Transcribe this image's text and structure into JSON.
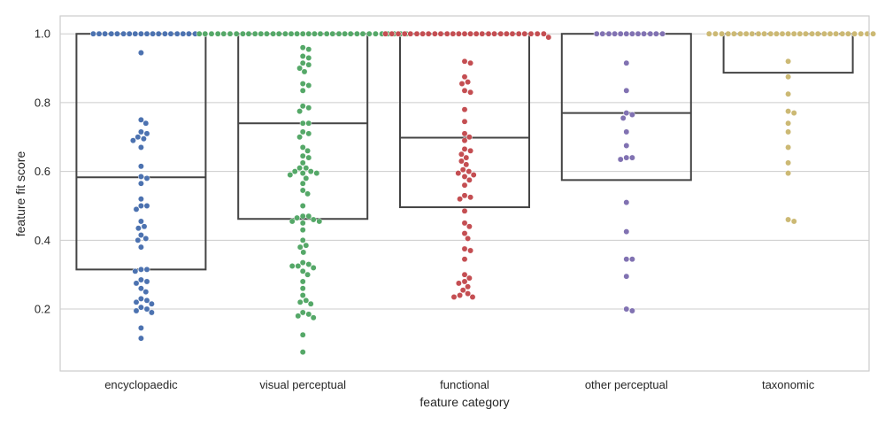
{
  "chart_data": {
    "type": "box+swarm",
    "xlabel": "feature category",
    "ylabel": "feature fit score",
    "ylim": [
      0.02,
      1.052
    ],
    "yticks": [
      "0.2",
      "0.4",
      "0.6",
      "0.8",
      "1.0"
    ],
    "grid": "horizontal",
    "categories": [
      "encyclopaedic",
      "visual perceptual",
      "functional",
      "other perceptual",
      "taxonomic"
    ],
    "colors": [
      "#4c72b0",
      "#55a868",
      "#c44e52",
      "#8172b2",
      "#ccb974"
    ],
    "boxes": [
      {
        "category": "encyclopaedic",
        "q1": 0.315,
        "median": 0.583,
        "q3": 1.0
      },
      {
        "category": "visual perceptual",
        "q1": 0.462,
        "median": 0.74,
        "q3": 1.0
      },
      {
        "category": "functional",
        "q1": 0.496,
        "median": 0.698,
        "q3": 1.0
      },
      {
        "category": "other perceptual",
        "q1": 0.575,
        "median": 0.77,
        "q3": 1.0
      },
      {
        "category": "taxonomic",
        "q1": 0.887,
        "median": 1.0,
        "q3": 1.0
      }
    ],
    "series": [
      {
        "category": "encyclopaedic",
        "values": [
          1,
          1,
          1,
          1,
          1,
          1,
          1,
          1,
          1,
          1,
          1,
          1,
          1,
          1,
          1,
          1,
          1,
          1,
          0.945,
          0.75,
          0.74,
          0.715,
          0.71,
          0.7,
          0.695,
          0.69,
          0.67,
          0.615,
          0.585,
          0.58,
          0.565,
          0.52,
          0.5,
          0.5,
          0.49,
          0.455,
          0.44,
          0.435,
          0.415,
          0.405,
          0.4,
          0.38,
          0.315,
          0.315,
          0.31,
          0.285,
          0.28,
          0.275,
          0.26,
          0.25,
          0.23,
          0.225,
          0.22,
          0.215,
          0.205,
          0.2,
          0.195,
          0.19,
          0.145,
          0.115
        ]
      },
      {
        "category": "visual perceptual",
        "values": [
          1,
          1,
          1,
          1,
          1,
          1,
          1,
          1,
          1,
          1,
          1,
          1,
          1,
          1,
          1,
          1,
          1,
          1,
          1,
          1,
          1,
          1,
          1,
          1,
          1,
          1,
          1,
          1,
          1,
          1,
          1,
          1,
          1,
          1,
          1,
          1,
          1,
          0.96,
          0.955,
          0.935,
          0.93,
          0.915,
          0.91,
          0.9,
          0.89,
          0.855,
          0.85,
          0.835,
          0.79,
          0.785,
          0.775,
          0.74,
          0.74,
          0.715,
          0.71,
          0.7,
          0.67,
          0.66,
          0.645,
          0.64,
          0.625,
          0.61,
          0.61,
          0.6,
          0.6,
          0.595,
          0.595,
          0.59,
          0.58,
          0.565,
          0.545,
          0.535,
          0.5,
          0.47,
          0.47,
          0.465,
          0.46,
          0.455,
          0.455,
          0.45,
          0.43,
          0.4,
          0.385,
          0.38,
          0.365,
          0.335,
          0.33,
          0.325,
          0.325,
          0.32,
          0.31,
          0.3,
          0.28,
          0.26,
          0.24,
          0.225,
          0.22,
          0.215,
          0.19,
          0.185,
          0.18,
          0.175,
          0.125,
          0.075
        ]
      },
      {
        "category": "functional",
        "values": [
          1,
          1,
          1,
          1,
          1,
          1,
          1,
          1,
          1,
          1,
          1,
          1,
          1,
          1,
          1,
          1,
          1,
          1,
          1,
          1,
          1,
          1,
          1,
          1,
          1,
          1,
          1,
          0.99,
          0.92,
          0.915,
          0.875,
          0.86,
          0.855,
          0.835,
          0.83,
          0.78,
          0.745,
          0.71,
          0.7,
          0.69,
          0.665,
          0.66,
          0.65,
          0.64,
          0.63,
          0.62,
          0.605,
          0.6,
          0.595,
          0.59,
          0.585,
          0.575,
          0.56,
          0.53,
          0.525,
          0.52,
          0.485,
          0.45,
          0.44,
          0.42,
          0.405,
          0.375,
          0.37,
          0.345,
          0.3,
          0.29,
          0.28,
          0.275,
          0.265,
          0.255,
          0.245,
          0.24,
          0.235,
          0.235
        ]
      },
      {
        "category": "other perceptual",
        "values": [
          1,
          1,
          1,
          1,
          1,
          1,
          1,
          1,
          1,
          1,
          1,
          1,
          0.915,
          0.835,
          0.77,
          0.765,
          0.755,
          0.715,
          0.675,
          0.64,
          0.64,
          0.635,
          0.51,
          0.425,
          0.345,
          0.345,
          0.295,
          0.2,
          0.195
        ]
      },
      {
        "category": "taxonomic",
        "values": [
          1,
          1,
          1,
          1,
          1,
          1,
          1,
          1,
          1,
          1,
          1,
          1,
          1,
          1,
          1,
          1,
          1,
          1,
          1,
          1,
          1,
          1,
          1,
          1,
          1,
          1,
          1,
          1,
          0.92,
          0.875,
          0.825,
          0.775,
          0.77,
          0.74,
          0.715,
          0.67,
          0.625,
          0.595,
          0.46,
          0.455
        ]
      }
    ]
  }
}
